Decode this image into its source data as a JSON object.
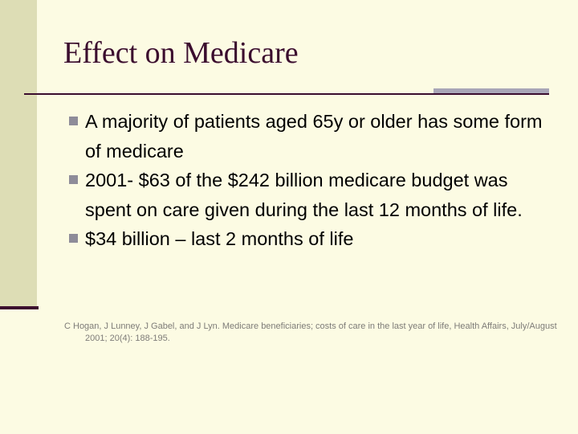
{
  "slide": {
    "title": "Effect on Medicare",
    "bullets": [
      {
        "text": "A majority of patients aged 65y or older has some form of medicare"
      },
      {
        "text": "2001- $63 of the $242 billion medicare budget was spent on care given during the last 12 months of life."
      },
      {
        "text": "$34 billion – last 2 months of life"
      }
    ],
    "reference": "C Hogan, J Lunney, J Gabel, and J Lyn. Medicare beneficiaries; costs of care in the last year of life, Health Affairs, July/August 2001; 20(4): 188-195."
  },
  "colors": {
    "background": "#fcfbe3",
    "sidebar": "#ddddb5",
    "title": "#3b0d2e",
    "bullet_marker": "#8e8c99",
    "rule_accent": "#a9a6b7"
  }
}
